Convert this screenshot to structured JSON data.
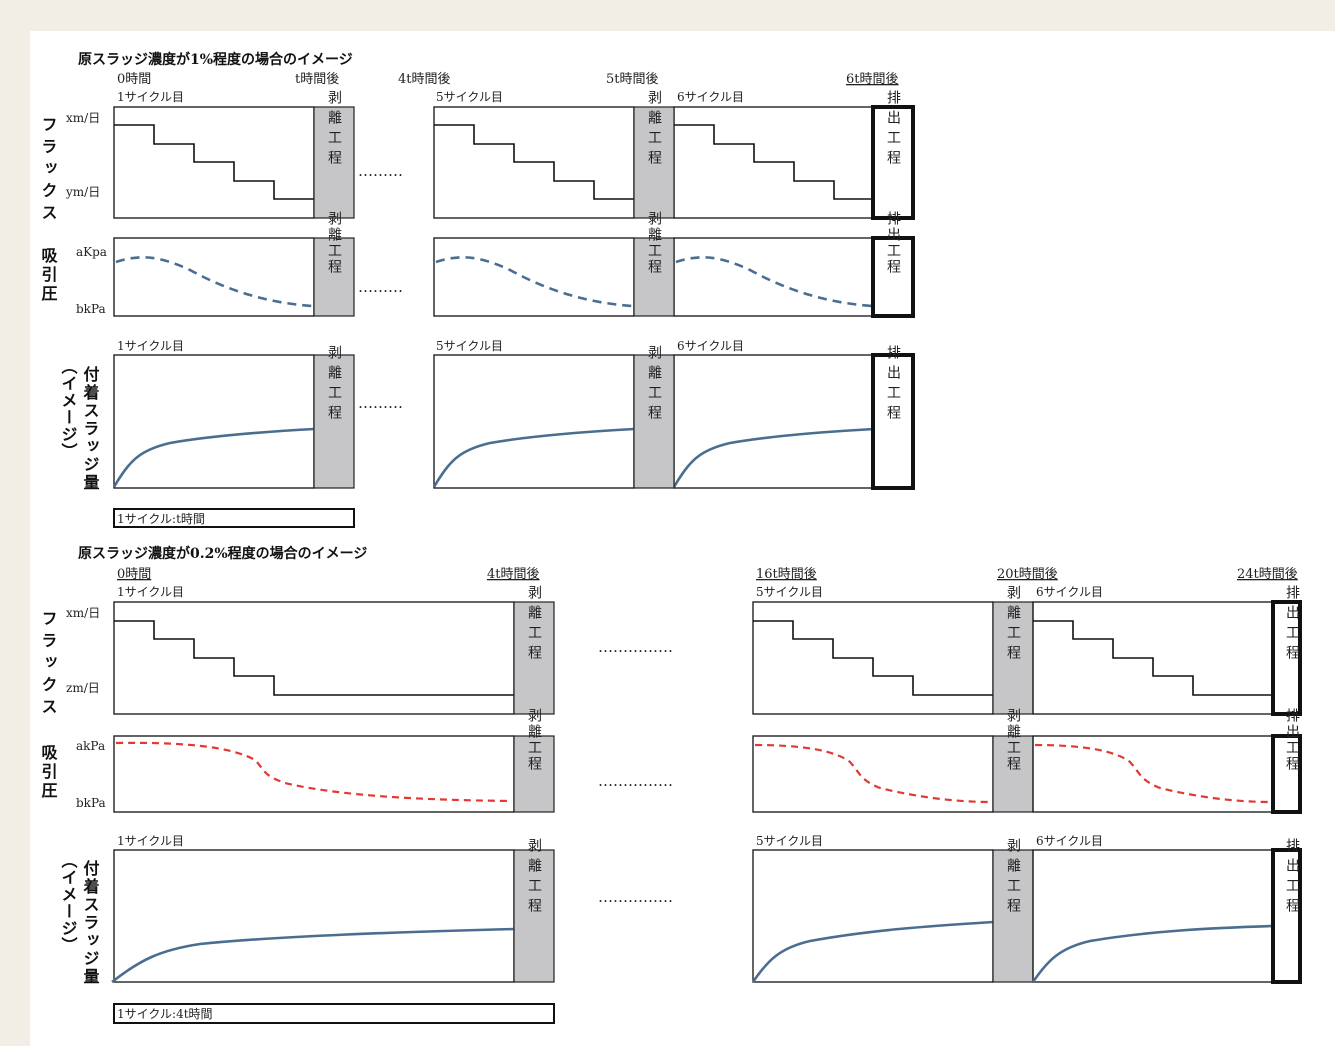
{
  "panel1": {
    "title": "原スラッジ濃度が1%程度の場合のイメージ",
    "times": [
      "0時間",
      "t時間後",
      "4t時間後",
      "5t時間後",
      "6t時間後"
    ],
    "cycles": [
      "1サイクル目",
      "5サイクル目",
      "6サイクル目"
    ],
    "flux_label": "フラックス",
    "flux_high": "xm/日",
    "flux_low": "ym/日",
    "suction_label": "吸引圧",
    "suction_high": "aKpa",
    "suction_low": "bkPa",
    "sludge_label": "付着スラッジ量",
    "sludge_sub": "（イメージ）",
    "note": "1サイクル:t時間"
  },
  "panel2": {
    "title": "原スラッジ濃度が0.2%程度の場合のイメージ",
    "times": [
      "0時間",
      "4t時間後",
      "16t時間後",
      "20t時間後",
      "24t時間後"
    ],
    "cycles": [
      "1サイクル目",
      "5サイクル目",
      "6サイクル目"
    ],
    "flux_label": "フラックス",
    "flux_high": "xm/日",
    "flux_low": "zm/日",
    "suction_label": "吸引圧",
    "suction_high": "akPa",
    "suction_low": "bkPa",
    "sludge_label": "付着スラッジ量",
    "sludge_sub": "（イメージ）",
    "note": "1サイクル:4t時間"
  },
  "process": {
    "peel": "剥離工程",
    "discharge": "排出工程"
  },
  "ellipsis": "………",
  "ellipsis_long": "……………",
  "colors": {
    "background": "#f2eee5",
    "peel_fill": "#c6c6c8",
    "flux_line": "#111111",
    "suction_curve_1": "#4a6d90",
    "suction_curve_2": "#e23a32",
    "sludge_curve": "#4a6d90"
  }
}
